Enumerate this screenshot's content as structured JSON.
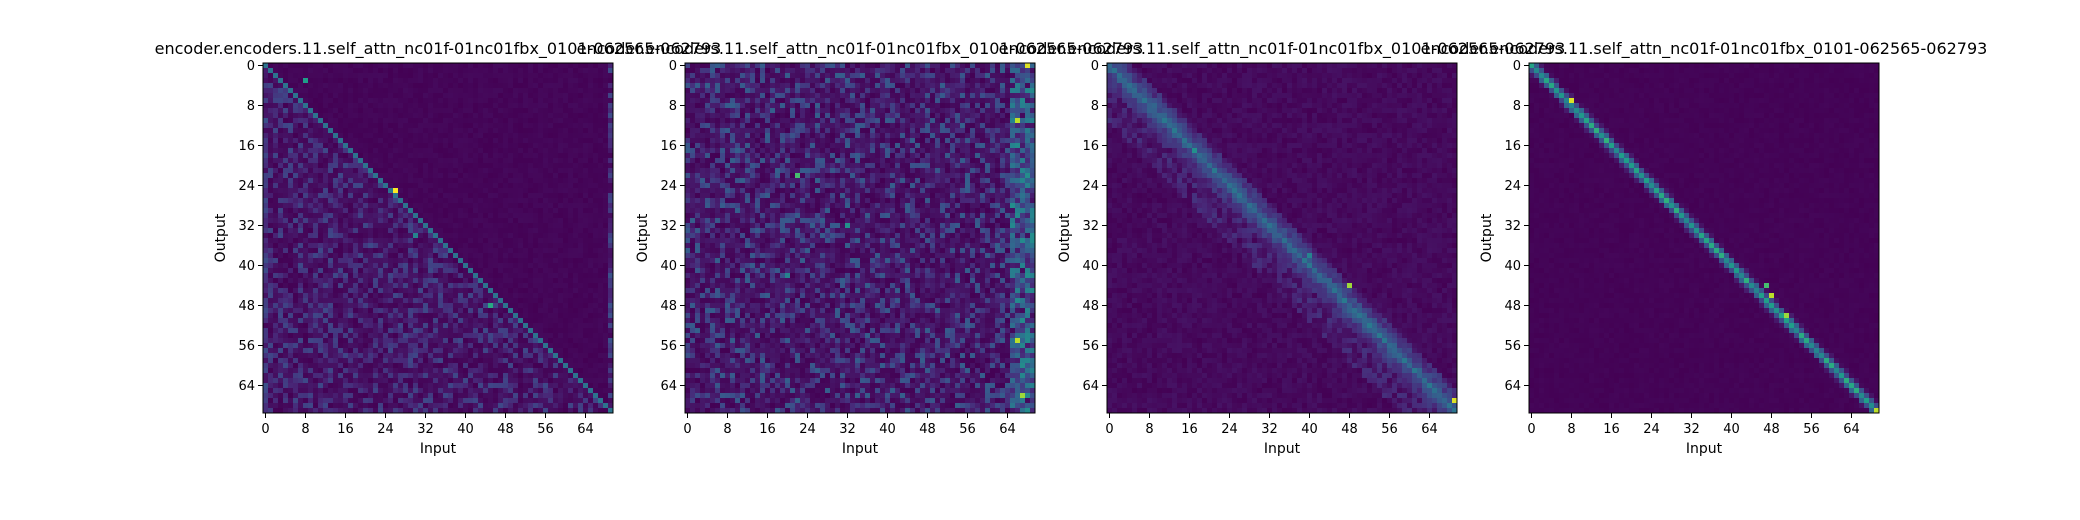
{
  "chart_data": [
    {
      "type": "heatmap",
      "title": "encoder.encoders.11.self_attn_nc01f-01nc01fbx_0101-062565-062793",
      "xlabel": "Input",
      "ylabel": "Output",
      "size": 70,
      "xticks": [
        "0",
        "8",
        "16",
        "24",
        "32",
        "40",
        "48",
        "56",
        "64"
      ],
      "yticks": [
        "0",
        "8",
        "16",
        "24",
        "32",
        "40",
        "48",
        "56",
        "64"
      ],
      "colormap": "viridis",
      "pattern": "diagonal-with-dense-lower-triangle",
      "hotspots": [
        [
          26,
          25,
          1.0
        ],
        [
          8,
          3,
          0.55
        ],
        [
          45,
          48,
          0.6
        ],
        [
          30,
          34,
          0.45
        ]
      ]
    },
    {
      "type": "heatmap",
      "title": "encoder.encoders.11.self_attn_nc01f-01nc01fbx_0101-062565-062793",
      "xlabel": "Input",
      "ylabel": "Output",
      "size": 70,
      "xticks": [
        "0",
        "8",
        "16",
        "24",
        "32",
        "40",
        "48",
        "56",
        "64"
      ],
      "yticks": [
        "0",
        "8",
        "16",
        "24",
        "32",
        "40",
        "48",
        "56",
        "64"
      ],
      "colormap": "viridis",
      "pattern": "diffuse-scattered",
      "hotspots": [
        [
          68,
          0,
          0.95
        ],
        [
          66,
          11,
          0.9
        ],
        [
          22,
          22,
          0.7
        ],
        [
          66,
          55,
          0.9
        ],
        [
          67,
          66,
          0.85
        ],
        [
          32,
          32,
          0.5
        ],
        [
          20,
          42,
          0.45
        ]
      ]
    },
    {
      "type": "heatmap",
      "title": "encoder.encoders.11.self_attn_nc01f-01nc01fbx_0101-062565-062793",
      "xlabel": "Input",
      "ylabel": "Output",
      "size": 70,
      "xticks": [
        "0",
        "8",
        "16",
        "24",
        "32",
        "40",
        "48",
        "56",
        "64"
      ],
      "yticks": [
        "0",
        "8",
        "16",
        "24",
        "32",
        "40",
        "48",
        "56",
        "64"
      ],
      "colormap": "viridis",
      "pattern": "soft-diagonal-band",
      "hotspots": [
        [
          48,
          44,
          0.85
        ],
        [
          69,
          67,
          0.95
        ],
        [
          17,
          17,
          0.5
        ],
        [
          40,
          38,
          0.45
        ]
      ]
    },
    {
      "type": "heatmap",
      "title": "encoder.encoders.11.self_attn_nc01f-01nc01fbx_0101-062565-062793",
      "xlabel": "Input",
      "ylabel": "Output",
      "size": 70,
      "xticks": [
        "0",
        "8",
        "16",
        "24",
        "32",
        "40",
        "48",
        "56",
        "64"
      ],
      "yticks": [
        "0",
        "8",
        "16",
        "24",
        "32",
        "40",
        "48",
        "56",
        "64"
      ],
      "colormap": "viridis",
      "pattern": "sharp-diagonal",
      "hotspots": [
        [
          8,
          7,
          0.95
        ],
        [
          48,
          46,
          0.9
        ],
        [
          51,
          50,
          0.85
        ],
        [
          69,
          69,
          0.9
        ],
        [
          47,
          44,
          0.7
        ]
      ]
    }
  ]
}
